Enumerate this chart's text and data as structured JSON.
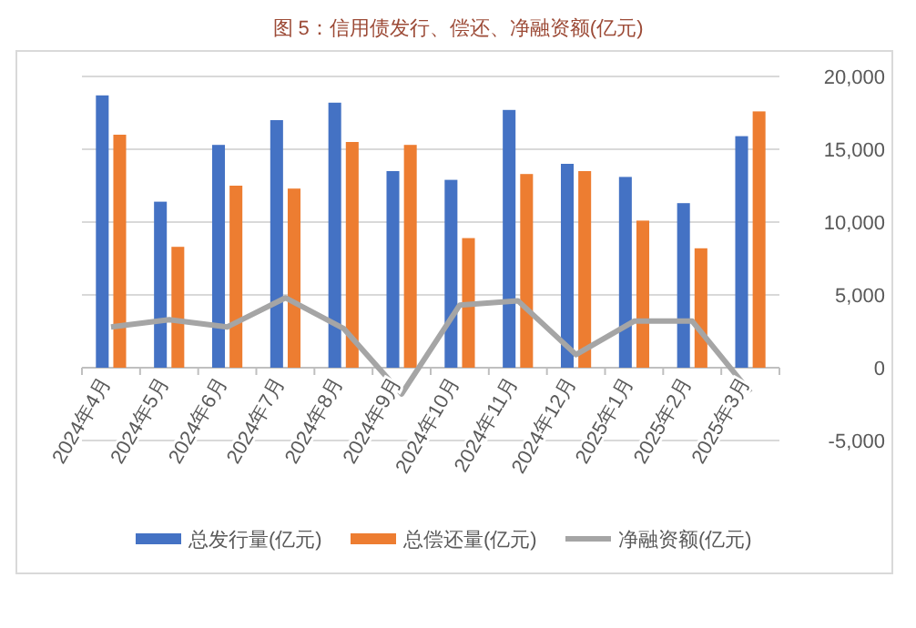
{
  "chart_data": {
    "type": "bar",
    "title": "图 5：信用债发行、偿还、净融资额(亿元)",
    "categories": [
      "2024年4月",
      "2024年5月",
      "2024年6月",
      "2024年7月",
      "2024年8月",
      "2024年9月",
      "2024年10月",
      "2024年11月",
      "2024年12月",
      "2025年1月",
      "2025年2月",
      "2025年3月"
    ],
    "series": [
      {
        "name": "总发行量(亿元)",
        "color": "#4472c4",
        "values": [
          18700,
          11400,
          15300,
          17000,
          18200,
          13500,
          12900,
          17700,
          14000,
          13100,
          11300,
          15900
        ]
      },
      {
        "name": "总偿还量(亿元)",
        "color": "#ed7d31",
        "values": [
          16000,
          8300,
          12500,
          12300,
          15500,
          15300,
          8900,
          13300,
          13500,
          10100,
          8200,
          17600
        ]
      },
      {
        "name": "净融资额(亿元)",
        "type": "line",
        "color": "#a5a5a5",
        "values": [
          2800,
          3300,
          2800,
          4800,
          2700,
          -1800,
          4300,
          4600,
          900,
          3200,
          3200,
          -1700
        ]
      }
    ],
    "ylim": [
      -5000,
      20000
    ],
    "yticks": [
      {
        "value": -5000,
        "label": "-5,000"
      },
      0,
      {
        "value": 5000,
        "label": "5,000"
      },
      {
        "value": 10000,
        "label": "10,000"
      },
      {
        "value": 15000,
        "label": "15,000"
      },
      {
        "value": 20000,
        "label": "20,000"
      }
    ],
    "grid": "y",
    "legend": "bottom",
    "marker": "none",
    "line_style": "solid"
  }
}
